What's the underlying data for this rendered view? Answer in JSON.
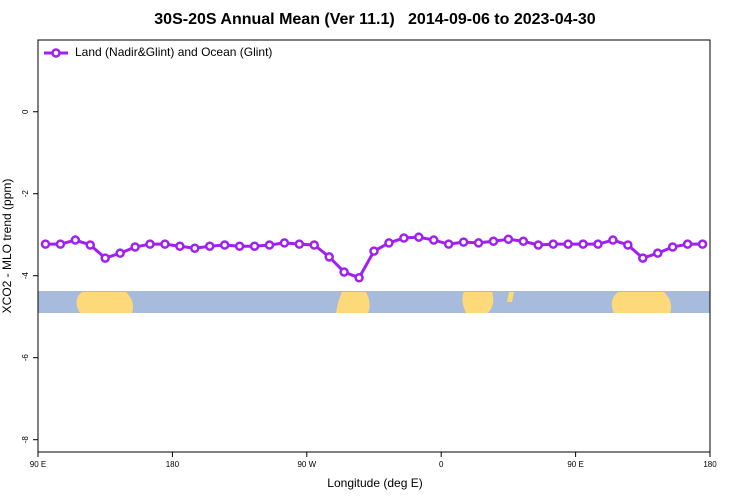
{
  "chart_data": {
    "type": "line",
    "title": "30S-20S Annual Mean (Ver 11.1)   2014-09-06 to 2023-04-30",
    "x_label": "Longitude (deg E)",
    "y_label": "XCO2 - MLO trend (ppm)",
    "x": [
      95,
      105,
      115,
      125,
      135,
      145,
      155,
      165,
      175,
      185,
      195,
      205,
      215,
      225,
      235,
      245,
      255,
      265,
      275,
      285,
      295,
      305,
      315,
      325,
      335,
      345,
      355,
      365,
      375,
      385,
      395,
      405,
      415,
      425,
      435,
      445,
      455,
      465,
      475,
      485,
      495,
      505,
      515,
      525,
      535
    ],
    "series": [
      {
        "name": "Land (Nadir&Glint) and Ocean (Glint)",
        "color": "#a020f0",
        "values": [
          -3.23,
          -3.23,
          -3.13,
          -3.25,
          -3.57,
          -3.45,
          -3.3,
          -3.23,
          -3.23,
          -3.28,
          -3.33,
          -3.28,
          -3.25,
          -3.28,
          -3.28,
          -3.25,
          -3.2,
          -3.23,
          -3.25,
          -3.54,
          -3.91,
          -4.05,
          -3.4,
          -3.2,
          -3.08,
          -3.06,
          -3.13,
          -3.23,
          -3.18,
          -3.2,
          -3.16,
          -3.11,
          -3.16,
          -3.25,
          -3.23,
          -3.23,
          -3.23,
          -3.23,
          -3.13,
          -3.25,
          -3.57,
          -3.45,
          -3.3,
          -3.23,
          -3.23
        ]
      }
    ],
    "xlim": [
      90,
      540
    ],
    "ylim": [
      -8.3,
      1.75
    ],
    "xticks": [
      {
        "value": 90,
        "label": "90 E"
      },
      {
        "value": 180,
        "label": "180"
      },
      {
        "value": 270,
        "label": "90 W"
      },
      {
        "value": 360,
        "label": "0"
      },
      {
        "value": 450,
        "label": "90 E"
      },
      {
        "value": 540,
        "label": "180"
      }
    ],
    "yticks": [
      0,
      -2,
      -4,
      -6,
      -8
    ],
    "legend": "top-left"
  }
}
